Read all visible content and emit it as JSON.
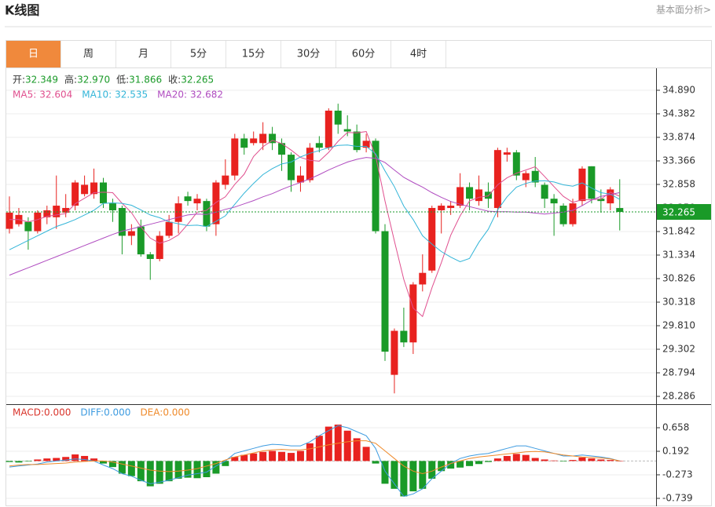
{
  "header": {
    "title": "K线图",
    "link": "基本面分析>"
  },
  "tabs": {
    "labels": [
      "日",
      "周",
      "月",
      "5分",
      "15分",
      "30分",
      "60分",
      "4时"
    ],
    "active": 0,
    "active_color": "#f0893c"
  },
  "chart_data": [
    {
      "type": "candlestick",
      "up_color": "#e8221f",
      "down_color": "#1a9a28",
      "summary": {
        "names": [
          "开:",
          "高:",
          "低:",
          "收:"
        ],
        "values": [
          32.349,
          32.97,
          31.866,
          32.265
        ],
        "value_labels": [
          "32.349",
          "32.970",
          "31.866",
          "32.265"
        ],
        "color": "#1a9a28"
      },
      "open": [
        31.9,
        32.0,
        32.05,
        31.85,
        32.15,
        32.15,
        32.25,
        32.4,
        32.65,
        32.65,
        32.9,
        32.45,
        32.35,
        31.75,
        31.95,
        31.35,
        31.25,
        31.75,
        32.05,
        32.6,
        32.45,
        32.5,
        32.0,
        32.85,
        33.05,
        33.85,
        33.75,
        33.75,
        33.95,
        33.75,
        33.5,
        32.9,
        32.95,
        33.75,
        33.65,
        34.45,
        34.05,
        34.0,
        33.65,
        33.8,
        31.85,
        28.75,
        29.7,
        29.45,
        30.7,
        31.0,
        32.3,
        32.35,
        32.4,
        32.8,
        32.5,
        32.7,
        32.35,
        33.5,
        33.55,
        32.95,
        33.15,
        32.85,
        32.55,
        32.4,
        32.0,
        32.5,
        33.25,
        32.55,
        32.45,
        32.349
      ],
      "high": [
        32.6,
        32.35,
        32.15,
        32.3,
        32.4,
        33.05,
        32.65,
        32.95,
        33.05,
        33.2,
        33.0,
        32.55,
        32.4,
        32.0,
        32.1,
        31.4,
        31.85,
        32.2,
        32.6,
        32.7,
        32.65,
        32.55,
        32.95,
        33.4,
        33.95,
        33.95,
        34.0,
        34.2,
        34.1,
        33.85,
        33.55,
        33.25,
        33.75,
        33.9,
        34.5,
        34.6,
        34.35,
        34.15,
        33.95,
        33.85,
        32.0,
        29.75,
        30.2,
        30.75,
        31.35,
        32.4,
        32.45,
        32.5,
        33.1,
        32.9,
        33.05,
        32.9,
        33.65,
        33.65,
        33.6,
        33.15,
        33.45,
        32.9,
        32.65,
        32.45,
        32.55,
        33.25,
        33.25,
        32.75,
        32.8,
        32.97
      ],
      "low": [
        31.8,
        31.95,
        31.45,
        31.8,
        32.0,
        31.9,
        32.15,
        32.3,
        32.6,
        32.55,
        32.35,
        32.05,
        31.35,
        31.55,
        31.3,
        30.8,
        31.2,
        31.7,
        31.8,
        32.4,
        32.3,
        31.85,
        31.75,
        32.75,
        32.95,
        33.5,
        33.7,
        33.6,
        33.6,
        33.15,
        32.7,
        32.7,
        32.9,
        33.55,
        33.6,
        33.95,
        33.9,
        33.55,
        33.55,
        31.8,
        29.05,
        28.35,
        29.35,
        29.2,
        30.55,
        30.95,
        31.8,
        32.2,
        32.35,
        32.3,
        32.4,
        32.35,
        32.15,
        33.35,
        32.95,
        32.8,
        32.8,
        32.35,
        31.75,
        31.95,
        31.95,
        32.4,
        32.45,
        32.25,
        32.3,
        31.866
      ],
      "close": [
        32.25,
        32.2,
        31.85,
        32.25,
        32.3,
        32.4,
        32.35,
        32.9,
        32.85,
        32.9,
        32.45,
        32.3,
        31.75,
        31.85,
        31.35,
        31.25,
        31.75,
        32.05,
        32.45,
        32.5,
        32.55,
        31.95,
        32.9,
        33.05,
        33.85,
        33.65,
        33.85,
        33.95,
        33.75,
        33.5,
        32.95,
        33.05,
        33.65,
        33.65,
        34.45,
        34.15,
        34.0,
        33.6,
        33.8,
        31.85,
        29.25,
        29.7,
        29.45,
        30.7,
        30.95,
        32.35,
        32.4,
        32.4,
        32.8,
        32.55,
        32.75,
        32.55,
        33.6,
        33.55,
        33.05,
        33.1,
        32.9,
        32.55,
        32.45,
        32.0,
        32.45,
        33.2,
        32.55,
        32.5,
        32.75,
        32.265
      ],
      "series": [
        {
          "name": "MA5:",
          "color": "#e0508f",
          "value_label": "32.604",
          "values": [
            32.1,
            32.1,
            32.05,
            32.1,
            32.17,
            32.2,
            32.23,
            32.44,
            32.56,
            32.68,
            32.69,
            32.68,
            32.45,
            32.25,
            31.94,
            31.7,
            31.59,
            31.65,
            31.77,
            32.0,
            32.26,
            32.3,
            32.47,
            32.59,
            32.86,
            33.08,
            33.46,
            33.67,
            33.81,
            33.74,
            33.6,
            33.44,
            33.38,
            33.36,
            33.55,
            33.79,
            33.98,
            33.97,
            34.0,
            33.48,
            32.5,
            31.64,
            30.81,
            30.19,
            30.01,
            30.63,
            31.17,
            31.76,
            32.18,
            32.5,
            32.58,
            32.61,
            32.85,
            33.0,
            33.1,
            33.17,
            33.24,
            33.03,
            32.81,
            32.6,
            32.47,
            32.53,
            32.53,
            32.54,
            32.69,
            32.604
          ]
        },
        {
          "name": "MA10:",
          "color": "#33b5d8",
          "value_label": "32.535",
          "values": [
            31.45,
            31.55,
            31.65,
            31.75,
            31.85,
            31.95,
            32.02,
            32.1,
            32.2,
            32.3,
            32.45,
            32.46,
            32.45,
            32.41,
            32.31,
            32.2,
            32.14,
            32.05,
            32.01,
            31.97,
            31.98,
            31.95,
            32.06,
            32.18,
            32.43,
            32.67,
            32.88,
            33.07,
            33.2,
            33.3,
            33.34,
            33.45,
            33.53,
            33.59,
            33.65,
            33.7,
            33.71,
            33.68,
            33.68,
            33.52,
            33.15,
            32.81,
            32.39,
            32.1,
            31.75,
            31.57,
            31.41,
            31.29,
            31.19,
            31.26,
            31.61,
            31.89,
            32.31,
            32.59,
            32.8,
            32.88,
            32.93,
            32.94,
            32.91,
            32.85,
            32.82,
            32.89,
            32.78,
            32.68,
            32.65,
            32.535
          ]
        },
        {
          "name": "MA20:",
          "color": "#b04cc0",
          "value_label": "32.682",
          "values": [
            30.9,
            30.98,
            31.06,
            31.14,
            31.22,
            31.3,
            31.38,
            31.46,
            31.54,
            31.62,
            31.7,
            31.78,
            31.85,
            31.9,
            31.95,
            32.0,
            32.05,
            32.1,
            32.15,
            32.2,
            32.22,
            32.21,
            32.26,
            32.32,
            32.37,
            32.44,
            32.51,
            32.59,
            32.66,
            32.75,
            32.83,
            32.9,
            32.98,
            33.07,
            33.17,
            33.26,
            33.34,
            33.4,
            33.44,
            33.42,
            33.33,
            33.17,
            33.01,
            32.9,
            32.8,
            32.68,
            32.58,
            32.49,
            32.43,
            32.38,
            32.33,
            32.28,
            32.27,
            32.27,
            32.26,
            32.26,
            32.24,
            32.22,
            32.24,
            32.26,
            32.3,
            32.4,
            32.52,
            32.6,
            32.64,
            32.682
          ]
        }
      ],
      "last_price": {
        "value": 32.265,
        "label": "32.265",
        "color": "#1a9a28"
      },
      "ylim": [
        28.117,
        35.364
      ],
      "yticks": [
        {
          "value": 34.89,
          "label": "34.890"
        },
        {
          "value": 34.382,
          "label": "34.382"
        },
        {
          "value": 33.874,
          "label": "33.874"
        },
        {
          "value": 33.366,
          "label": "33.366"
        },
        {
          "value": 32.858,
          "label": "32.858"
        },
        {
          "value": 32.35,
          "label": "32.350"
        },
        {
          "value": 31.842,
          "label": "31.842"
        },
        {
          "value": 31.334,
          "label": "31.334"
        },
        {
          "value": 30.826,
          "label": "30.826"
        },
        {
          "value": 30.318,
          "label": "30.318"
        },
        {
          "value": 29.81,
          "label": "29.810"
        },
        {
          "value": 29.302,
          "label": "29.302"
        },
        {
          "value": 28.794,
          "label": "28.794"
        },
        {
          "value": 28.286,
          "label": "28.286"
        }
      ],
      "grid": true
    },
    {
      "type": "macd",
      "up_color": "#e8221f",
      "down_color": "#1a9a28",
      "series": [
        {
          "name": "MACD:",
          "kind": "bar",
          "color": "#d9342b",
          "value_label": "0.000",
          "values": [
            -0.02,
            -0.03,
            -0.01,
            0.03,
            0.05,
            0.06,
            0.08,
            0.13,
            0.1,
            0.05,
            -0.05,
            -0.12,
            -0.25,
            -0.3,
            -0.4,
            -0.5,
            -0.45,
            -0.4,
            -0.35,
            -0.33,
            -0.34,
            -0.32,
            -0.25,
            -0.1,
            0.08,
            0.12,
            0.15,
            0.18,
            0.2,
            0.18,
            0.16,
            0.2,
            0.35,
            0.5,
            0.68,
            0.72,
            0.6,
            0.45,
            0.28,
            -0.05,
            -0.45,
            -0.55,
            -0.7,
            -0.6,
            -0.55,
            -0.35,
            -0.2,
            -0.15,
            -0.13,
            -0.1,
            -0.06,
            -0.02,
            0.05,
            0.1,
            0.14,
            0.12,
            0.06,
            0.03,
            0.01,
            -0.01,
            0.02,
            0.07,
            0.05,
            0.03,
            0.02,
            0.0
          ]
        },
        {
          "name": "DIFF:",
          "kind": "line",
          "color": "#3d9be0",
          "value_label": "0.000",
          "values": [
            -0.12,
            -0.1,
            -0.08,
            -0.06,
            -0.02,
            0.0,
            0.02,
            0.04,
            0.03,
            0.0,
            -0.08,
            -0.15,
            -0.25,
            -0.3,
            -0.38,
            -0.45,
            -0.42,
            -0.38,
            -0.33,
            -0.28,
            -0.25,
            -0.22,
            -0.1,
            0.0,
            0.15,
            0.2,
            0.25,
            0.3,
            0.33,
            0.32,
            0.3,
            0.3,
            0.38,
            0.5,
            0.6,
            0.7,
            0.66,
            0.58,
            0.5,
            0.25,
            -0.2,
            -0.45,
            -0.7,
            -0.65,
            -0.55,
            -0.35,
            -0.2,
            -0.05,
            0.05,
            0.1,
            0.13,
            0.15,
            0.2,
            0.25,
            0.3,
            0.3,
            0.25,
            0.2,
            0.15,
            0.1,
            0.1,
            0.12,
            0.1,
            0.08,
            0.05,
            0.0
          ]
        },
        {
          "name": "DEA:",
          "kind": "line",
          "color": "#ef8a2a",
          "value_label": "0.000",
          "values": [
            -0.1,
            -0.08,
            -0.07,
            -0.07,
            -0.06,
            -0.05,
            -0.04,
            -0.02,
            -0.01,
            0.0,
            0.0,
            -0.02,
            -0.06,
            -0.1,
            -0.14,
            -0.18,
            -0.2,
            -0.21,
            -0.2,
            -0.18,
            -0.15,
            -0.1,
            -0.05,
            0.02,
            0.08,
            0.12,
            0.16,
            0.2,
            0.22,
            0.23,
            0.22,
            0.22,
            0.24,
            0.28,
            0.32,
            0.35,
            0.38,
            0.4,
            0.4,
            0.35,
            0.2,
            0.05,
            -0.1,
            -0.2,
            -0.25,
            -0.2,
            -0.12,
            -0.05,
            0.0,
            0.05,
            0.08,
            0.1,
            0.12,
            0.14,
            0.16,
            0.18,
            0.19,
            0.18,
            0.15,
            0.12,
            0.1,
            0.08,
            0.07,
            0.06,
            0.04,
            0.0
          ]
        }
      ],
      "ylim": [
        -0.91,
        1.124
      ],
      "yticks": [
        0.658,
        0.192,
        -0.273,
        -0.739
      ],
      "grid": true
    }
  ]
}
